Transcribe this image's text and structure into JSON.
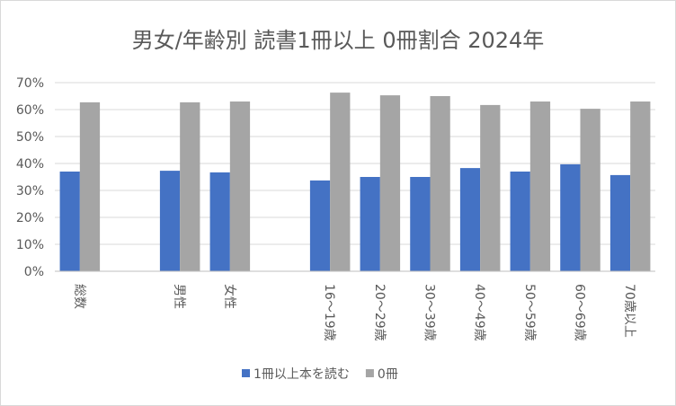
{
  "chart_data": {
    "type": "bar",
    "title": "男女/年齢別 読書1冊以上 0冊割合 2024年",
    "categories": [
      "総数",
      "",
      "男性",
      "女性",
      "",
      "16～19歳",
      "20～29歳",
      "30～39歳",
      "40～49歳",
      "50～59歳",
      "60～69歳",
      "70歳以上"
    ],
    "series": [
      {
        "name": "1冊以上本を読む",
        "color": "#4472c4",
        "values": [
          0.37,
          null,
          0.373,
          0.367,
          null,
          0.337,
          0.35,
          0.35,
          0.383,
          0.37,
          0.397,
          0.357
        ]
      },
      {
        "name": "0冊",
        "color": "#a5a5a5",
        "values": [
          0.627,
          null,
          0.627,
          0.63,
          null,
          0.663,
          0.653,
          0.65,
          0.617,
          0.63,
          0.603,
          0.63
        ]
      }
    ],
    "ylim": [
      0,
      0.7
    ],
    "yticks": [
      "0%",
      "10%",
      "20%",
      "30%",
      "40%",
      "50%",
      "60%",
      "70%"
    ],
    "grid": true,
    "legend_position": "bottom"
  }
}
